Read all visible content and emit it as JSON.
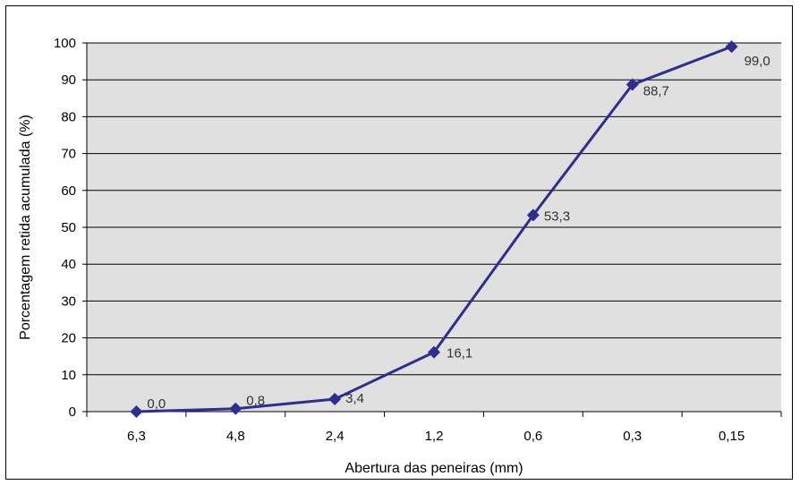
{
  "chart_data": {
    "type": "line",
    "title": "",
    "xlabel": "Abertura das peneiras (mm)",
    "ylabel": "Porcentagem retida acumulada (%)",
    "categories": [
      "6,3",
      "4,8",
      "2,4",
      "1,2",
      "0,6",
      "0,3",
      "0,15"
    ],
    "series": [
      {
        "values": [
          0.0,
          0.8,
          3.4,
          16.1,
          53.3,
          88.7,
          99.0
        ],
        "labels": [
          "0,0",
          "0,8",
          "3,4",
          "16,1",
          "53,3",
          "88,7",
          "99,0"
        ]
      }
    ],
    "ylim": [
      0,
      100
    ],
    "yticks": [
      0,
      10,
      20,
      30,
      40,
      50,
      60,
      70,
      80,
      90,
      100
    ],
    "grid": true,
    "legend": "none",
    "colors": {
      "line": "#2e2e8f",
      "marker": "#2e2e8f",
      "plot_background": "#e0e0e0",
      "gridline": "#000000"
    },
    "marker": "diamond"
  }
}
